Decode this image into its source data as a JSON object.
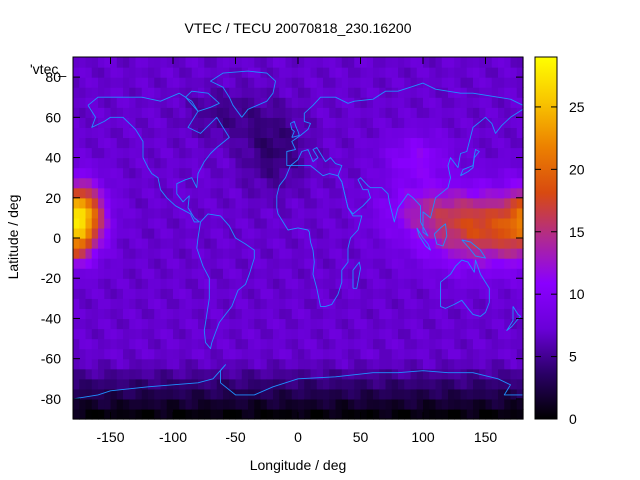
{
  "chart_data": {
    "type": "heatmap",
    "title": "VTEC / TECU 20070818_230.16200",
    "xlabel": "Longitude / deg",
    "ylabel": "Latitude / deg",
    "series_label": "'vtec_",
    "xlim": [
      -180,
      180
    ],
    "ylim": [
      -90,
      90
    ],
    "x_ticks": [
      -150,
      -100,
      -50,
      0,
      50,
      100,
      150
    ],
    "y_ticks": [
      -80,
      -60,
      -40,
      -20,
      0,
      20,
      40,
      60,
      80
    ],
    "colorbar": {
      "range": [
        0,
        29
      ],
      "ticks": [
        0,
        5,
        10,
        15,
        20,
        25
      ],
      "palette": [
        "#000000",
        "#2a0066",
        "#6a00d8",
        "#8a00ff",
        "#b02a90",
        "#d84a10",
        "#ec8000",
        "#f8c400",
        "#ffff00"
      ]
    },
    "tec_features": {
      "background_level": 7,
      "pacific_peak": {
        "lon": -175,
        "lat": 10,
        "value": 28
      },
      "asia_peak": {
        "lon": 150,
        "lat": 5,
        "value": 19
      },
      "south_polar_minimum": {
        "lat": -82,
        "value": 1
      }
    },
    "colors": {
      "coastline": "#1e90ff",
      "frame": "#000000"
    }
  }
}
